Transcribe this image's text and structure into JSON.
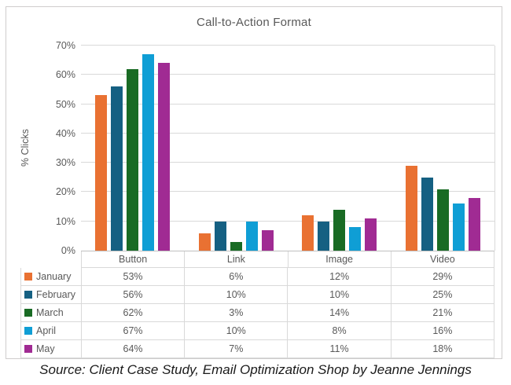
{
  "chart_data": {
    "type": "bar",
    "title": "Call-to-Action Format",
    "ylabel": "% Clicks",
    "xlabel": "",
    "categories": [
      "Button",
      "Link",
      "Image",
      "Video"
    ],
    "series": [
      {
        "name": "January",
        "color": "#E97132",
        "values": [
          53,
          6,
          12,
          29
        ]
      },
      {
        "name": "February",
        "color": "#156082",
        "values": [
          56,
          10,
          10,
          25
        ]
      },
      {
        "name": "March",
        "color": "#196B24",
        "values": [
          62,
          3,
          14,
          21
        ]
      },
      {
        "name": "April",
        "color": "#0F9ED5",
        "values": [
          67,
          10,
          8,
          16
        ]
      },
      {
        "name": "May",
        "color": "#A02B93",
        "values": [
          64,
          7,
          11,
          18
        ]
      }
    ],
    "ylim": [
      0,
      70
    ],
    "ytick_labels": [
      "0%",
      "10%",
      "20%",
      "30%",
      "40%",
      "50%",
      "60%",
      "70%"
    ],
    "value_suffix": "%",
    "grid": true,
    "legend_position": "data-table-left"
  },
  "colors": {
    "grid": "#d9d9d9",
    "axis_line": "#bfbfbf",
    "axis_text": "#595959",
    "panel_border": "#cfcdcd"
  },
  "source_note": "Source: Client Case Study, Email Optimization Shop by Jeanne Jennings"
}
